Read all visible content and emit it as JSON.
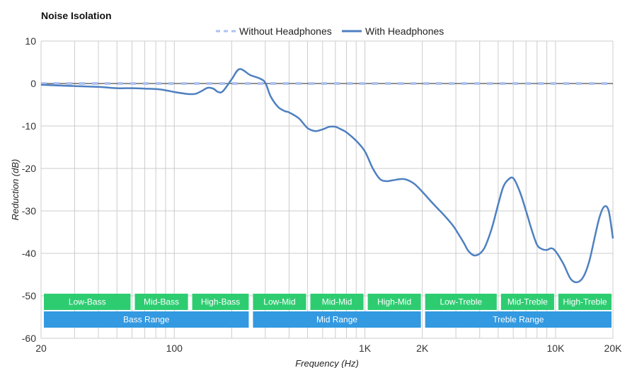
{
  "colors": {
    "without": "#aec2f0",
    "with": "#4e80c1",
    "band_green": "#2ecc71",
    "band_blue": "#3399e0",
    "grid": "#cccccc"
  },
  "chart_data": {
    "type": "line",
    "title": "Noise Isolation",
    "xlabel": "Frequency (Hz)",
    "ylabel": "Reduction (dB)",
    "x_scale": "log",
    "xlim": [
      20,
      20000
    ],
    "ylim": [
      -60,
      10
    ],
    "x_ticks": [
      {
        "value": 20,
        "label": "20"
      },
      {
        "value": 100,
        "label": "100"
      },
      {
        "value": 1000,
        "label": "1K"
      },
      {
        "value": 2000,
        "label": "2K"
      },
      {
        "value": 10000,
        "label": "10K"
      },
      {
        "value": 20000,
        "label": "20K"
      }
    ],
    "y_ticks": [
      10,
      0,
      -10,
      -20,
      -30,
      -40,
      -50,
      -60
    ],
    "grid": true,
    "legend_position": "top-center",
    "series": [
      {
        "name": "Without Headphones",
        "style": "dashed",
        "x": [
          20,
          20000
        ],
        "y": [
          0,
          0
        ]
      },
      {
        "name": "With Headphones",
        "style": "solid",
        "x": [
          20,
          30,
          40,
          50,
          60,
          70,
          80,
          90,
          100,
          110,
          120,
          130,
          140,
          150,
          160,
          170,
          180,
          200,
          220,
          250,
          280,
          300,
          320,
          350,
          380,
          400,
          450,
          500,
          550,
          600,
          650,
          700,
          750,
          800,
          900,
          1000,
          1100,
          1200,
          1300,
          1400,
          1600,
          1800,
          2000,
          2300,
          2600,
          2900,
          3100,
          3300,
          3500,
          3800,
          4200,
          4600,
          5000,
          5300,
          5600,
          6000,
          6500,
          7000,
          7500,
          8000,
          8500,
          9000,
          9500,
          10000,
          11000,
          12000,
          13000,
          14000,
          15000,
          16000,
          17000,
          18000,
          19000,
          20000
        ],
        "y": [
          -0.3,
          -0.6,
          -0.8,
          -1.1,
          -1.1,
          -1.2,
          -1.3,
          -1.6,
          -2.0,
          -2.3,
          -2.5,
          -2.4,
          -1.7,
          -1.0,
          -1.2,
          -2.0,
          -1.8,
          1.0,
          3.4,
          2.0,
          1.2,
          0.2,
          -3.0,
          -5.5,
          -6.5,
          -6.8,
          -8.2,
          -10.5,
          -11.2,
          -10.8,
          -10.2,
          -10.2,
          -10.8,
          -11.5,
          -13.5,
          -16.0,
          -20.0,
          -22.5,
          -23.0,
          -22.8,
          -22.5,
          -23.5,
          -25.5,
          -28.5,
          -31.0,
          -33.5,
          -35.5,
          -37.5,
          -39.5,
          -40.5,
          -39.0,
          -34.5,
          -28.5,
          -24.5,
          -22.8,
          -22.3,
          -25.5,
          -30.0,
          -34.5,
          -38.0,
          -39.0,
          -39.2,
          -38.8,
          -39.5,
          -42.5,
          -46.0,
          -46.8,
          -45.5,
          -42.0,
          -36.5,
          -31.5,
          -29.0,
          -30.0,
          -36.5
        ]
      }
    ],
    "bands": [
      {
        "label": "Low-Bass",
        "row": 1,
        "from": 20,
        "to": 60
      },
      {
        "label": "Mid-Bass",
        "row": 1,
        "from": 60,
        "to": 120
      },
      {
        "label": "High-Bass",
        "row": 1,
        "from": 120,
        "to": 250
      },
      {
        "label": "Low-Mid",
        "row": 1,
        "from": 250,
        "to": 500
      },
      {
        "label": "Mid-Mid",
        "row": 1,
        "from": 500,
        "to": 1000
      },
      {
        "label": "High-Mid",
        "row": 1,
        "from": 1000,
        "to": 2000
      },
      {
        "label": "Low-Treble",
        "row": 1,
        "from": 2000,
        "to": 5000
      },
      {
        "label": "Mid-Treble",
        "row": 1,
        "from": 5000,
        "to": 10000
      },
      {
        "label": "High-Treble",
        "row": 1,
        "from": 10000,
        "to": 20000
      },
      {
        "label": "Bass Range",
        "row": 2,
        "from": 20,
        "to": 250
      },
      {
        "label": "Mid Range",
        "row": 2,
        "from": 250,
        "to": 2000
      },
      {
        "label": "Treble Range",
        "row": 2,
        "from": 2000,
        "to": 20000
      }
    ]
  }
}
